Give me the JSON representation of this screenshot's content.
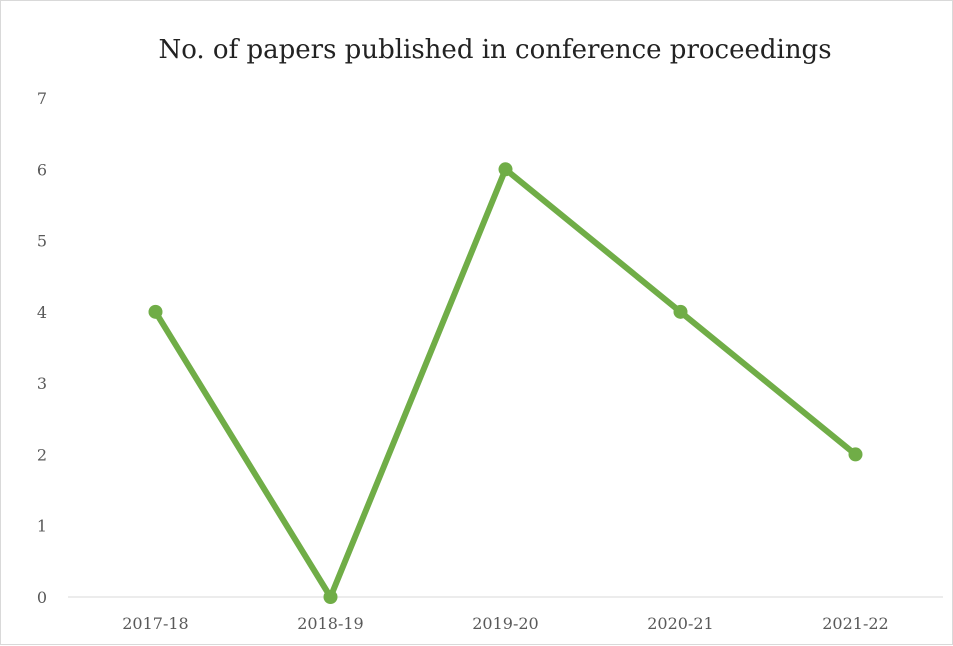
{
  "chart_data": {
    "type": "line",
    "title": "No. of papers published in conference proceedings",
    "xlabel": "",
    "ylabel": "",
    "categories": [
      "2017-18",
      "2018-19",
      "2019-20",
      "2020-21",
      "2021-22"
    ],
    "series": [
      {
        "values": [
          4,
          0,
          6,
          4,
          2
        ],
        "color": "#70ad47"
      }
    ],
    "ylim": [
      0,
      7
    ],
    "yticks": [
      "0",
      "1",
      "2",
      "3",
      "4",
      "5",
      "6",
      "7"
    ],
    "grid": false,
    "legend": "none"
  }
}
